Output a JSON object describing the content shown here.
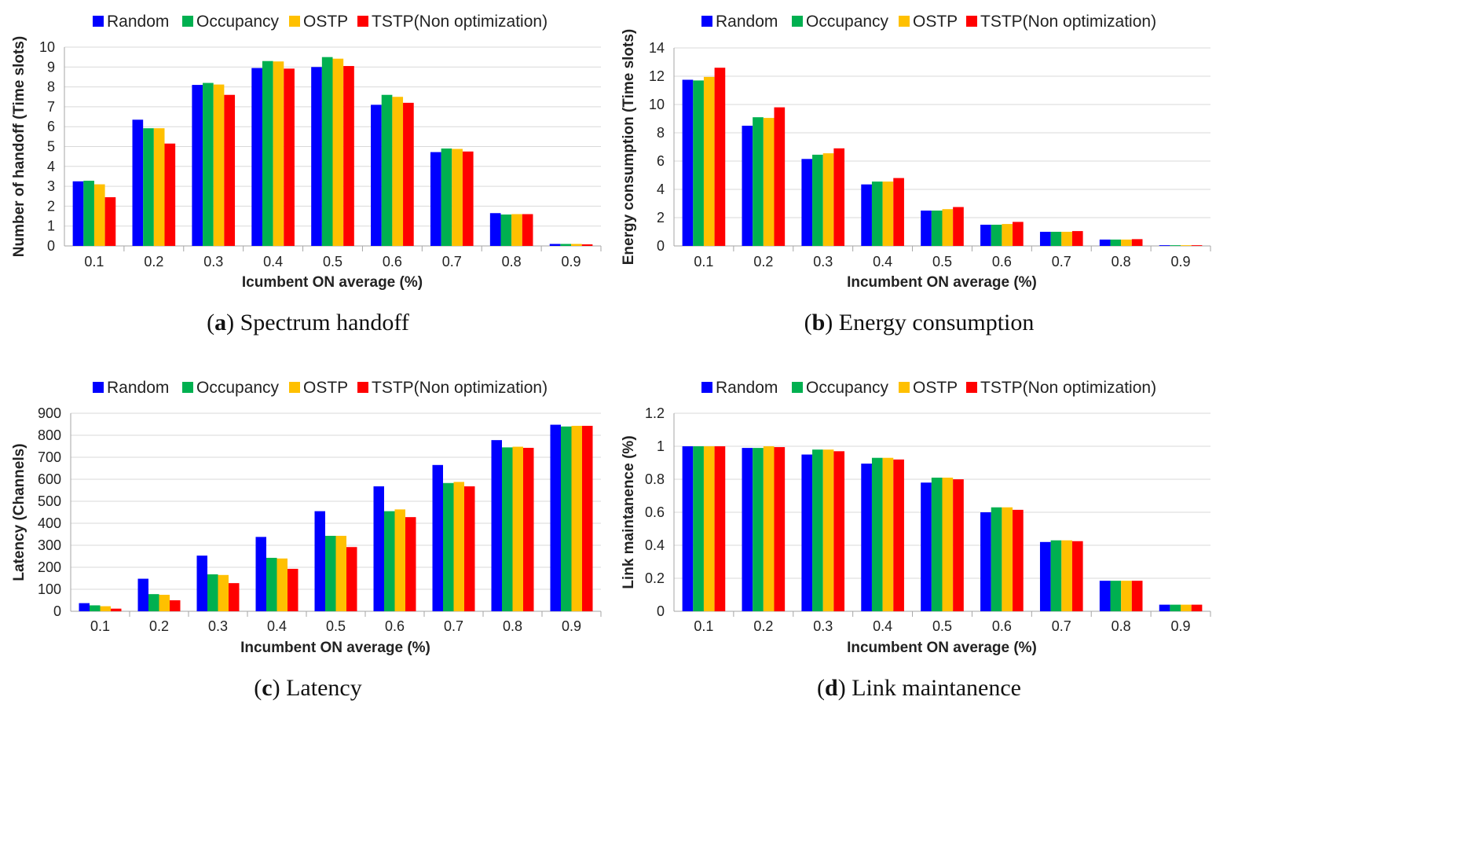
{
  "legend": {
    "series_names": [
      "Random",
      "Occupancy",
      "OSTP",
      "TSTP(Non optimization)"
    ],
    "colors": [
      "#0000FF",
      "#00B050",
      "#FFC000",
      "#FF0000"
    ]
  },
  "chart_data": [
    {
      "id": "a",
      "type": "bar",
      "caption_letter": "a",
      "caption_text": "Spectrum handoff",
      "xlabel": "Icumbent ON average (%)",
      "ylabel": "Number of handoff (Time slots)",
      "ylim": [
        0,
        10
      ],
      "yticks": [
        0,
        1,
        2,
        3,
        4,
        5,
        6,
        7,
        8,
        9,
        10
      ],
      "categories": [
        "0.1",
        "0.2",
        "0.3",
        "0.4",
        "0.5",
        "0.6",
        "0.7",
        "0.8",
        "0.9"
      ],
      "series": [
        {
          "name": "Random",
          "values": [
            3.25,
            6.35,
            8.1,
            8.95,
            9.0,
            7.1,
            4.72,
            1.65,
            0.1
          ]
        },
        {
          "name": "Occupancy",
          "values": [
            3.28,
            5.92,
            8.2,
            9.3,
            9.5,
            7.6,
            4.9,
            1.58,
            0.1
          ]
        },
        {
          "name": "OSTP",
          "values": [
            3.1,
            5.92,
            8.12,
            9.28,
            9.42,
            7.5,
            4.88,
            1.6,
            0.1
          ]
        },
        {
          "name": "TSTP(Non optimization)",
          "values": [
            2.45,
            5.15,
            7.6,
            8.92,
            9.05,
            7.2,
            4.75,
            1.6,
            0.08
          ]
        }
      ],
      "grid": true,
      "legend_position": "top"
    },
    {
      "id": "b",
      "type": "bar",
      "caption_letter": "b",
      "caption_text": "Energy consumption",
      "xlabel": "Incumbent ON average (%)",
      "ylabel": "Energy consumption (Time slots)",
      "ylim": [
        0,
        14
      ],
      "yticks": [
        0,
        2,
        4,
        6,
        8,
        10,
        12,
        14
      ],
      "categories": [
        "0.1",
        "0.2",
        "0.3",
        "0.4",
        "0.5",
        "0.6",
        "0.7",
        "0.8",
        "0.9"
      ],
      "series": [
        {
          "name": "Random",
          "values": [
            11.75,
            8.5,
            6.15,
            4.35,
            2.5,
            1.5,
            1.0,
            0.45,
            0.05
          ]
        },
        {
          "name": "Occupancy",
          "values": [
            11.7,
            9.1,
            6.45,
            4.55,
            2.5,
            1.5,
            1.0,
            0.45,
            0.05
          ]
        },
        {
          "name": "OSTP",
          "values": [
            11.95,
            9.05,
            6.55,
            4.55,
            2.6,
            1.55,
            1.0,
            0.45,
            0.05
          ]
        },
        {
          "name": "TSTP(Non optimization)",
          "values": [
            12.6,
            9.8,
            6.9,
            4.8,
            2.75,
            1.7,
            1.05,
            0.48,
            0.05
          ]
        }
      ],
      "grid": true,
      "legend_position": "top"
    },
    {
      "id": "c",
      "type": "bar",
      "caption_letter": "c",
      "caption_text": "Latency",
      "xlabel": "Incumbent ON average (%)",
      "ylabel": "Latency (Channels)",
      "ylim": [
        0,
        900
      ],
      "yticks": [
        0,
        100,
        200,
        300,
        400,
        500,
        600,
        700,
        800,
        900
      ],
      "categories": [
        "0.1",
        "0.2",
        "0.3",
        "0.4",
        "0.5",
        "0.6",
        "0.7",
        "0.8",
        "0.9"
      ],
      "series": [
        {
          "name": "Random",
          "values": [
            37,
            148,
            253,
            338,
            455,
            568,
            665,
            778,
            848
          ]
        },
        {
          "name": "Occupancy",
          "values": [
            27,
            78,
            168,
            243,
            343,
            455,
            583,
            745,
            840
          ]
        },
        {
          "name": "OSTP",
          "values": [
            23,
            75,
            165,
            240,
            343,
            463,
            588,
            748,
            843
          ]
        },
        {
          "name": "TSTP(Non optimization)",
          "values": [
            12,
            50,
            128,
            193,
            292,
            428,
            568,
            743,
            843
          ]
        }
      ],
      "grid": true,
      "legend_position": "top"
    },
    {
      "id": "d",
      "type": "bar",
      "caption_letter": "d",
      "caption_text": "Link maintanence",
      "xlabel": "Incumbent ON average (%)",
      "ylabel": "Link maintanence (%)",
      "ylim": [
        0,
        1.2
      ],
      "yticks": [
        0,
        0.2,
        0.4,
        0.6,
        0.8,
        1,
        1.2
      ],
      "categories": [
        "0.1",
        "0.2",
        "0.3",
        "0.4",
        "0.5",
        "0.6",
        "0.7",
        "0.8",
        "0.9"
      ],
      "series": [
        {
          "name": "Random",
          "values": [
            1.0,
            0.99,
            0.95,
            0.895,
            0.78,
            0.6,
            0.42,
            0.185,
            0.04
          ]
        },
        {
          "name": "Occupancy",
          "values": [
            1.0,
            0.99,
            0.98,
            0.93,
            0.81,
            0.63,
            0.43,
            0.185,
            0.04
          ]
        },
        {
          "name": "OSTP",
          "values": [
            1.0,
            1.0,
            0.98,
            0.93,
            0.81,
            0.63,
            0.43,
            0.185,
            0.04
          ]
        },
        {
          "name": "TSTP(Non optimization)",
          "values": [
            1.0,
            0.995,
            0.97,
            0.92,
            0.8,
            0.615,
            0.425,
            0.185,
            0.04
          ]
        }
      ],
      "grid": true,
      "legend_position": "top"
    }
  ]
}
